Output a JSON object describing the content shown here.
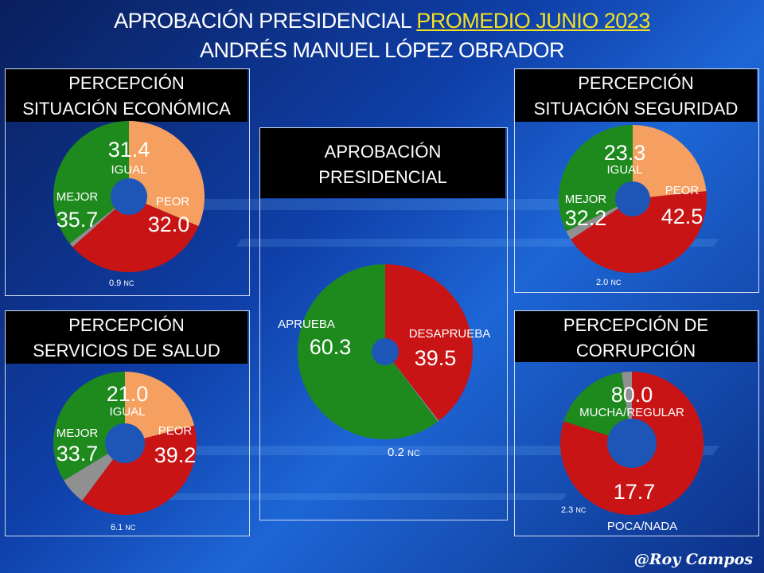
{
  "header": {
    "line1_prefix": "APROBACIÓN PRESIDENCIAL",
    "line1_highlight": "PROMEDIO JUNIO 2023",
    "line2": "ANDRÉS MANUEL LÓPEZ OBRADOR"
  },
  "signature": "@Roy Campos",
  "colors": {
    "green": "#1e8a1e",
    "red": "#c81414",
    "orange": "#f5a060",
    "gray": "#909090",
    "hole": "#1e56b8"
  },
  "chart_data": [
    {
      "id": "economica",
      "type": "pie",
      "title": "PERCEPCIÓN SITUACIÓN ECONÓMICA",
      "slices": [
        {
          "label": "IGUAL",
          "value": 31.4,
          "color": "#f5a060"
        },
        {
          "label": "PEOR",
          "value": 32.0,
          "color": "#c81414"
        },
        {
          "label": "NC",
          "value": 0.9,
          "color": "#909090"
        },
        {
          "label": "MEJOR",
          "value": 35.7,
          "color": "#1e8a1e"
        }
      ]
    },
    {
      "id": "aprobacion",
      "type": "pie",
      "title": "APROBACIÓN PRESIDENCIAL",
      "slices": [
        {
          "label": "DESAPRUEBA",
          "value": 39.5,
          "color": "#c81414"
        },
        {
          "label": "NC",
          "value": 0.2,
          "color": "#909090"
        },
        {
          "label": "APRUEBA",
          "value": 60.3,
          "color": "#1e8a1e"
        }
      ]
    },
    {
      "id": "seguridad",
      "type": "pie",
      "title": "PERCEPCIÓN SITUACIÓN SEGURIDAD",
      "slices": [
        {
          "label": "IGUAL",
          "value": 23.3,
          "color": "#f5a060"
        },
        {
          "label": "PEOR",
          "value": 42.5,
          "color": "#c81414"
        },
        {
          "label": "NC",
          "value": 2.0,
          "color": "#909090"
        },
        {
          "label": "MEJOR",
          "value": 32.2,
          "color": "#1e8a1e"
        }
      ]
    },
    {
      "id": "salud",
      "type": "pie",
      "title": "PERCEPCIÓN SERVICIOS DE SALUD",
      "slices": [
        {
          "label": "IGUAL",
          "value": 21.0,
          "color": "#f5a060"
        },
        {
          "label": "PEOR",
          "value": 39.2,
          "color": "#c81414"
        },
        {
          "label": "NC",
          "value": 6.1,
          "color": "#909090"
        },
        {
          "label": "MEJOR",
          "value": 33.7,
          "color": "#1e8a1e"
        }
      ]
    },
    {
      "id": "corrupcion",
      "type": "pie",
      "title": "PERCEPCIÓN DE CORRUPCIÓN",
      "slices": [
        {
          "label": "MUCHA/REGULAR",
          "value": 80.0,
          "color": "#c81414"
        },
        {
          "label": "POCA/NADA",
          "value": 17.7,
          "color": "#1e8a1e"
        },
        {
          "label": "NC",
          "value": 2.3,
          "color": "#909090"
        }
      ]
    }
  ]
}
